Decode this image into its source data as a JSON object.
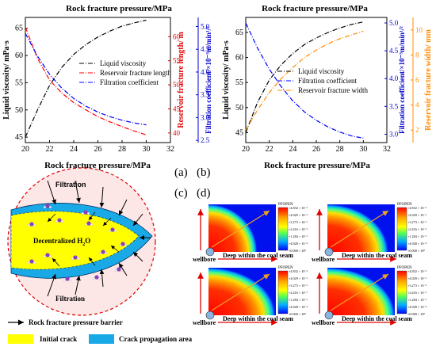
{
  "chart_data": [
    {
      "type": "line",
      "panel": "(a)",
      "title": "Rock fracture pressure/MPa",
      "xlabel": "Rock fracture pressure/MPa",
      "xlim": [
        20,
        32
      ],
      "xticks": [
        "20",
        "22",
        "24",
        "26",
        "28",
        "30",
        "32"
      ],
      "ylabel_left": "Liquid viscosity/ mPa·s",
      "ylim_left": [
        44,
        67
      ],
      "yticks_left": [
        "45",
        "50",
        "55",
        "60",
        "65"
      ],
      "ylabel_right1": "Reservoir fracture length/ m",
      "ylim_right1": [
        38,
        64
      ],
      "yticks_right1": [
        "40",
        "45",
        "50",
        "55",
        "60"
      ],
      "ylabel_right2": "Filtration coefficient/×10⁻³m/min¹/²",
      "ylim_right2": [
        2.45,
        5.2
      ],
      "yticks_right2": [
        "2.5",
        "3.0",
        "3.5",
        "4.0",
        "4.5",
        "5.0"
      ],
      "legend": "center-right",
      "series": [
        {
          "name": "Liquid viscosity",
          "color": "#000000",
          "axis": "left",
          "x": [
            20,
            21,
            22,
            23,
            24,
            25,
            26,
            27,
            28,
            29,
            30
          ],
          "y": [
            45,
            50,
            54.5,
            57.8,
            60.2,
            62,
            63.4,
            64.5,
            65.4,
            66,
            66.5
          ]
        },
        {
          "name": "Reservoir fracture length",
          "color": "#ff0000",
          "axis": "right1",
          "x": [
            20,
            21,
            22,
            23,
            24,
            25,
            26,
            27,
            28,
            29,
            30
          ],
          "y": [
            62,
            55.5,
            51,
            48.3,
            46.3,
            44.8,
            43.4,
            42.3,
            41.3,
            40.4,
            39.6
          ]
        },
        {
          "name": "Filtration coefficient",
          "color": "#0000ff",
          "axis": "right2",
          "x": [
            20,
            21,
            22,
            23,
            24,
            25,
            26,
            27,
            28,
            29,
            30
          ],
          "y": [
            4.85,
            4.35,
            3.95,
            3.65,
            3.42,
            3.25,
            3.12,
            3.02,
            2.94,
            2.88,
            2.84
          ]
        }
      ]
    },
    {
      "type": "line",
      "panel": "(b)",
      "title": "Rock fracture pressure/MPa",
      "xlabel": "Rock fracture pressure/MPa",
      "xlim": [
        20,
        32
      ],
      "xticks": [
        "20",
        "22",
        "24",
        "26",
        "28",
        "30",
        "32"
      ],
      "ylabel_left": "Liquid viscosity/ mPa·s",
      "ylim_left": [
        43,
        68
      ],
      "yticks_left": [
        "45",
        "50",
        "55",
        "60",
        "65"
      ],
      "ylabel_right1": "Filtration coefficient/×10⁻³m/min¹/²",
      "ylim_right1": [
        2.85,
        5.1
      ],
      "yticks_right1": [
        "3.0",
        "3.5",
        "4.0",
        "4.5",
        "5.0"
      ],
      "ylabel_right2": "Reservoir fracture width/ mm",
      "ylim_right2": [
        1,
        11
      ],
      "yticks_right2": [
        "2",
        "4",
        "6",
        "8",
        "10"
      ],
      "legend": "center-right",
      "series": [
        {
          "name": "Liquid viscosity",
          "color": "#000000",
          "axis": "left",
          "x": [
            20,
            21,
            22,
            23,
            24,
            25,
            26,
            27,
            28,
            29,
            30
          ],
          "y": [
            45,
            51,
            55.5,
            58.5,
            60.8,
            62.6,
            63.9,
            65,
            65.9,
            66.6,
            67.1
          ]
        },
        {
          "name": "Filtration coefficient",
          "color": "#0000ff",
          "axis": "right1",
          "x": [
            20,
            21,
            22,
            23,
            24,
            25,
            26,
            27,
            28,
            29,
            30
          ],
          "y": [
            5.0,
            4.55,
            4.17,
            3.86,
            3.6,
            3.4,
            3.25,
            3.13,
            3.04,
            2.97,
            2.93
          ]
        },
        {
          "name": "Reservoir fracture width",
          "color": "#ff8c00",
          "axis": "right2",
          "x": [
            20,
            21,
            22,
            23,
            24,
            25,
            26,
            27,
            28,
            29,
            30
          ],
          "y": [
            2,
            3.6,
            5,
            6.1,
            7,
            7.8,
            8.4,
            8.9,
            9.3,
            9.6,
            9.9
          ]
        }
      ]
    }
  ],
  "panel_labels": {
    "a": "(a)",
    "b": "(b)",
    "c": "(c)",
    "d": "(d)"
  },
  "schematic": {
    "filtration_top": "Filtration",
    "filtration_bottom": "Filtration",
    "center_label_main": "Decentralized H",
    "center_label_sub": "2",
    "center_label_end": "O",
    "legend": [
      {
        "label": "Rock fracture pressure barrier",
        "symbol": "arrow"
      },
      {
        "label": "Initial crack",
        "color": "#ffff00"
      },
      {
        "label": "Crack propagation area",
        "color": "#19a9e6"
      }
    ]
  },
  "contours": {
    "colorbar_title": "PFOPEN",
    "colorbar_ticks": [
      "+4.832 × 10⁻³",
      "+4.029 × 10⁻³",
      "+3.273 × 10⁻³",
      "+2.416 × 10⁻³",
      "+1.284 × 10⁻³",
      "+4.928 × 10⁻⁴",
      "+0.000 × 10⁰"
    ],
    "colorbar_colors": [
      "#ff0000",
      "#ff4000",
      "#ff8000",
      "#ffbf00",
      "#ffff00",
      "#bfff00",
      "#80ff00",
      "#00ff40",
      "#00ffbf",
      "#00bfff",
      "#0080ff",
      "#0040ff",
      "#0000ff"
    ],
    "wellbore_label": "wellbore",
    "deep_label": "Deep within the coal seam",
    "panels": [
      {
        "radius": 0.4
      },
      {
        "radius": 0.5
      },
      {
        "radius": 0.55
      },
      {
        "radius": 0.65
      }
    ]
  }
}
